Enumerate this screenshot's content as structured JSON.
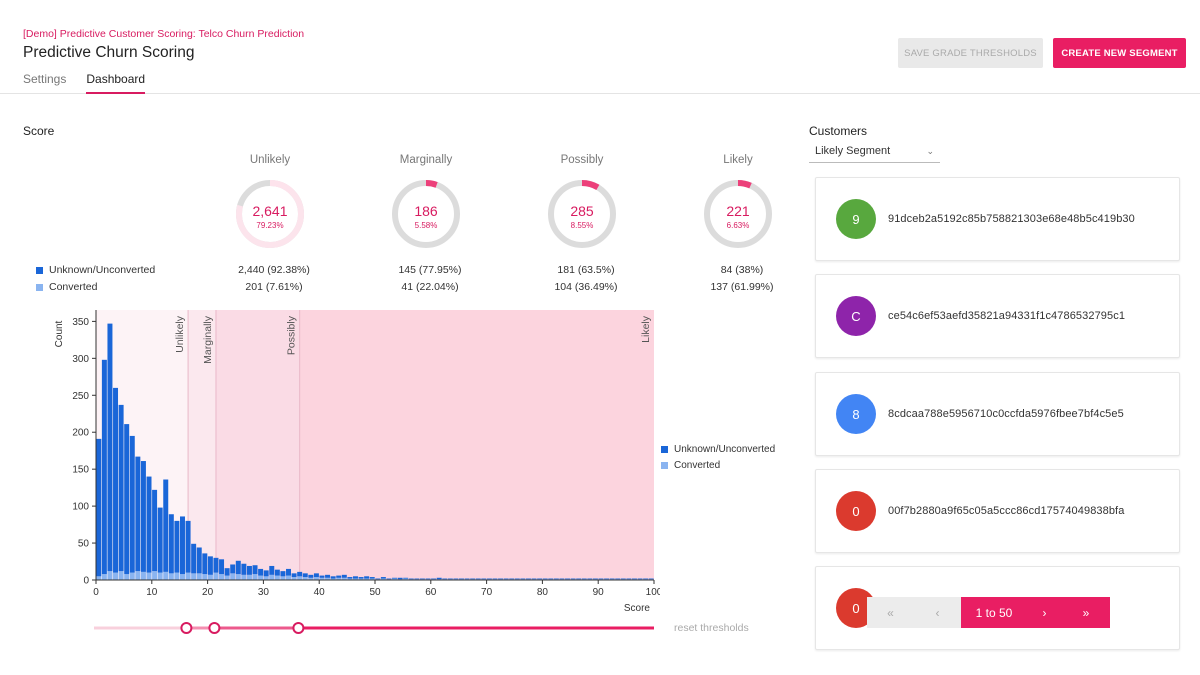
{
  "header": {
    "breadcrumb": "[Demo] Predictive Customer Scoring: Telco Churn Prediction",
    "title": "Predictive Churn Scoring",
    "tabs": [
      {
        "label": "Settings"
      },
      {
        "label": "Dashboard"
      }
    ],
    "save_label": "SAVE GRADE THRESHOLDS",
    "create_label": "CREATE NEW SEGMENT"
  },
  "score": {
    "title": "Score",
    "legend": [
      {
        "label": "Unknown/Unconverted",
        "color": "#1a66d8"
      },
      {
        "label": "Converted",
        "color": "#8ab4f0"
      }
    ],
    "grades": [
      {
        "label": "Unlikely",
        "value": "2,641",
        "pct": "79.23%",
        "fraction": 0.7923,
        "unconverted": "2,440  (92.38%)",
        "converted": "201  (7.61%)"
      },
      {
        "label": "Marginally",
        "value": "186",
        "pct": "5.58%",
        "fraction": 0.0558,
        "unconverted": "145  (77.95%)",
        "converted": "41  (22.04%)"
      },
      {
        "label": "Possibly",
        "value": "285",
        "pct": "8.55%",
        "fraction": 0.0855,
        "unconverted": "181  (63.5%)",
        "converted": "104  (36.49%)"
      },
      {
        "label": "Likely",
        "value": "221",
        "pct": "6.63%",
        "fraction": 0.0663,
        "unconverted": "84  (38%)",
        "converted": "137  (61.99%)"
      }
    ],
    "reset_label": "reset thresholds"
  },
  "chart_data": {
    "type": "bar",
    "stacked": true,
    "ylabel": "Count",
    "xlabel": "Score",
    "xlim": [
      0,
      100
    ],
    "ylim": [
      0,
      360
    ],
    "xticks": [
      0,
      10,
      20,
      30,
      40,
      50,
      60,
      70,
      80,
      90,
      100
    ],
    "yticks": [
      0,
      50,
      100,
      150,
      200,
      250,
      300,
      350
    ],
    "thresholds": [
      {
        "label": "Unlikely",
        "score": 16.5
      },
      {
        "label": "Marginally",
        "score": 21.5
      },
      {
        "label": "Possibly",
        "score": 36.5
      },
      {
        "label": "Likely",
        "score": 100
      }
    ],
    "series": [
      {
        "name": "Unknown/Unconverted",
        "color": "#1a66d8",
        "values": [
          186,
          290,
          335,
          250,
          225,
          203,
          185,
          155,
          150,
          130,
          110,
          88,
          125,
          80,
          70,
          78,
          70,
          40,
          35,
          28,
          25,
          20,
          20,
          10,
          12,
          18,
          15,
          12,
          12,
          9,
          8,
          12,
          8,
          7,
          9,
          5,
          6,
          5,
          4,
          5,
          3,
          4,
          3,
          3,
          4,
          2,
          3,
          2,
          3,
          2,
          1,
          2,
          1,
          1,
          2,
          1,
          1,
          1,
          1,
          1,
          1,
          2,
          1,
          1,
          1,
          1,
          1,
          1,
          1,
          1,
          1,
          1,
          1,
          1,
          1,
          1,
          1,
          1,
          1,
          1,
          1,
          1,
          1,
          1,
          1,
          1,
          1,
          1,
          1,
          1,
          1,
          1,
          1,
          1,
          1,
          1,
          1,
          1,
          1,
          1
        ]
      },
      {
        "name": "Converted",
        "color": "#8ab4f0",
        "values": [
          5,
          8,
          12,
          10,
          12,
          8,
          10,
          12,
          11,
          10,
          12,
          10,
          11,
          9,
          10,
          8,
          10,
          9,
          9,
          8,
          7,
          10,
          8,
          6,
          9,
          8,
          7,
          7,
          8,
          6,
          5,
          7,
          6,
          5,
          6,
          4,
          5,
          4,
          3,
          4,
          3,
          3,
          2,
          3,
          3,
          2,
          2,
          2,
          2,
          2,
          1,
          2,
          1,
          2,
          1,
          2,
          1,
          1,
          1,
          1,
          1,
          1,
          1,
          1,
          1,
          1,
          1,
          1,
          1,
          1,
          1,
          1,
          1,
          1,
          1,
          1,
          1,
          1,
          1,
          1,
          1,
          1,
          1,
          1,
          1,
          1,
          1,
          1,
          1,
          1,
          1,
          1,
          1,
          1,
          1,
          1,
          1,
          1,
          1,
          1
        ]
      }
    ]
  },
  "customers": {
    "title": "Customers",
    "segment": "Likely Segment",
    "list": [
      {
        "avatar": "9",
        "color": "#58a83e",
        "id": "91dceb2a5192c85b758821303e68e48b5c419b30"
      },
      {
        "avatar": "C",
        "color": "#8e24aa",
        "id": "ce54c6ef53aefd35821a94331f1c4786532795c1"
      },
      {
        "avatar": "8",
        "color": "#4285f4",
        "id": "8cdcaa788e5956710c0ccfda5976fbee7bf4c5e5"
      },
      {
        "avatar": "0",
        "color": "#db3a2e",
        "id": "00f7b2880a9f65c05a5ccc86cd17574049838bfa"
      },
      {
        "avatar": "0",
        "color": "#db3a2e",
        "id": ""
      }
    ],
    "pager": {
      "first": "«",
      "prev": "‹",
      "range": "1 to 50",
      "next": "›",
      "last": "»"
    }
  }
}
